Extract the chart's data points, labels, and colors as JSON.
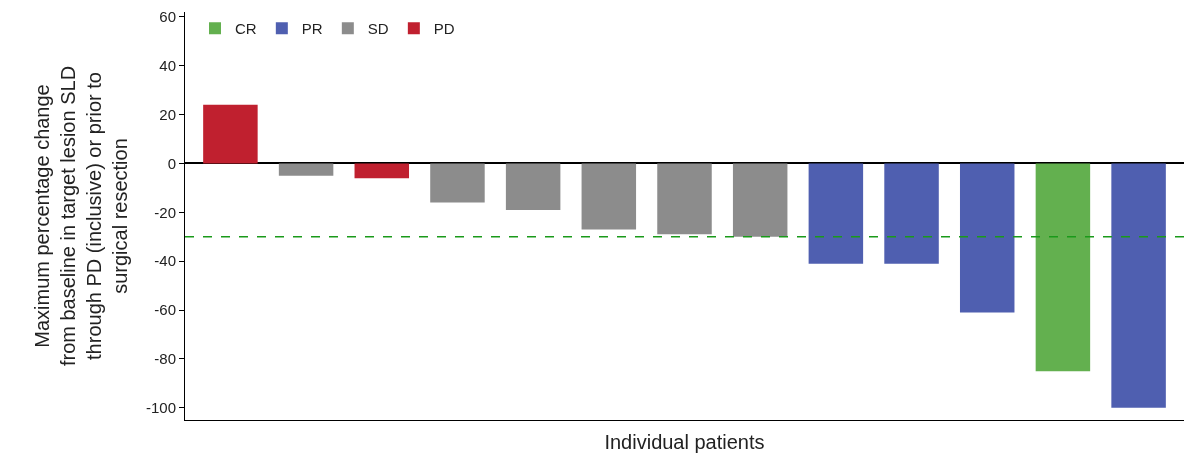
{
  "chart_data": {
    "type": "bar",
    "xlabel": "Individual patients",
    "ylabel": "Maximum percentage change\nfrom baseline in target lesion SLD\nthrough PD (inclusive) or prior to\nsurgical resection",
    "categories": [
      null,
      null,
      null,
      null,
      null,
      null,
      null,
      null,
      null,
      null,
      null,
      null,
      null
    ],
    "series": [
      {
        "name": "CR",
        "color": "#63b04f",
        "values": [
          null,
          null,
          null,
          null,
          null,
          null,
          null,
          null,
          null,
          null,
          null,
          -85,
          null
        ]
      },
      {
        "name": "PR",
        "color": "#4f5fb0",
        "values": [
          null,
          null,
          null,
          null,
          null,
          null,
          null,
          null,
          -41,
          -41,
          -61,
          null,
          -100
        ]
      },
      {
        "name": "SD",
        "color": "#8c8c8c",
        "values": [
          null,
          -5,
          null,
          -16,
          -19,
          -27,
          -29,
          -30,
          null,
          null,
          null,
          null,
          null
        ]
      },
      {
        "name": "PD",
        "color": "#c0202f",
        "values": [
          24,
          null,
          -6,
          null,
          null,
          null,
          null,
          null,
          null,
          null,
          null,
          null,
          null
        ]
      }
    ],
    "ylim": [
      -105,
      62
    ],
    "yticks": [
      -100,
      -80,
      -60,
      -40,
      -20,
      0,
      20,
      40,
      60
    ],
    "ref_lines": [
      {
        "axis": "y",
        "value": -30,
        "color": "#1a9a1a",
        "line_style": "dashed"
      }
    ],
    "legend": "top left",
    "tick_labels": "y"
  }
}
